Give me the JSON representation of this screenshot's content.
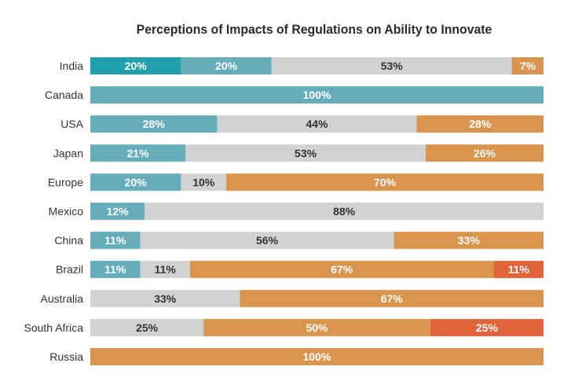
{
  "chart_data": {
    "type": "bar",
    "orientation": "horizontal",
    "stacked": true,
    "percent": true,
    "title": "Perceptions of Impacts of Regulations on Ability to Innovate",
    "xlim": [
      0,
      100
    ],
    "grid": false,
    "legend": "none",
    "categories": [
      "India",
      "Canada",
      "USA",
      "Japan",
      "Europe",
      "Mexico",
      "China",
      "Brazil",
      "Australia",
      "South Africa",
      "Russia"
    ],
    "series": [
      {
        "color": "#21a0ac",
        "values": [
          20,
          0,
          0,
          0,
          0,
          0,
          0,
          0,
          0,
          0,
          0
        ]
      },
      {
        "color": "#66adbc",
        "values": [
          20,
          100,
          28,
          21,
          20,
          12,
          11,
          11,
          0,
          0,
          0
        ]
      },
      {
        "color": "#d0d2d3",
        "values": [
          53,
          0,
          44,
          53,
          10,
          88,
          56,
          11,
          33,
          25,
          0
        ]
      },
      {
        "color": "#d9954e",
        "values": [
          7,
          0,
          28,
          26,
          70,
          0,
          33,
          67,
          67,
          50,
          100
        ]
      },
      {
        "color": "#e0643a",
        "values": [
          0,
          0,
          0,
          0,
          0,
          0,
          0,
          11,
          0,
          25,
          0
        ]
      }
    ],
    "label_colors": {
      "light": "#ffffff",
      "dark": "#333333"
    }
  }
}
